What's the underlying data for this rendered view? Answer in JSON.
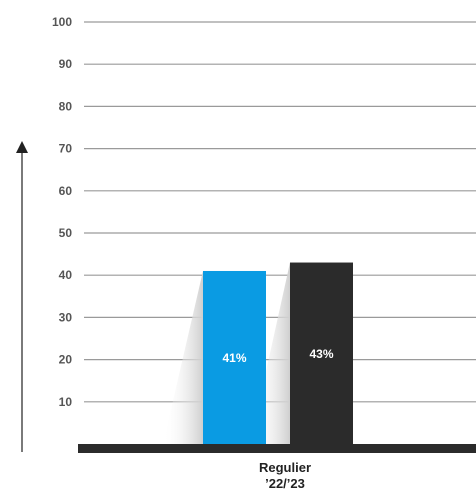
{
  "chart_data": {
    "type": "bar",
    "categories": [
      "Regulier"
    ],
    "category_sublabel": "’22/’23",
    "series": [
      {
        "values": [
          41
        ],
        "color": "#0a9be3",
        "label": "41%"
      },
      {
        "values": [
          43
        ],
        "color": "#2b2b2b",
        "label": "43%"
      }
    ],
    "ylim": [
      0,
      100
    ],
    "yticks": [
      10,
      20,
      30,
      40,
      50,
      60,
      70,
      80,
      90,
      100
    ],
    "grid": true,
    "axis_arrow": true
  }
}
